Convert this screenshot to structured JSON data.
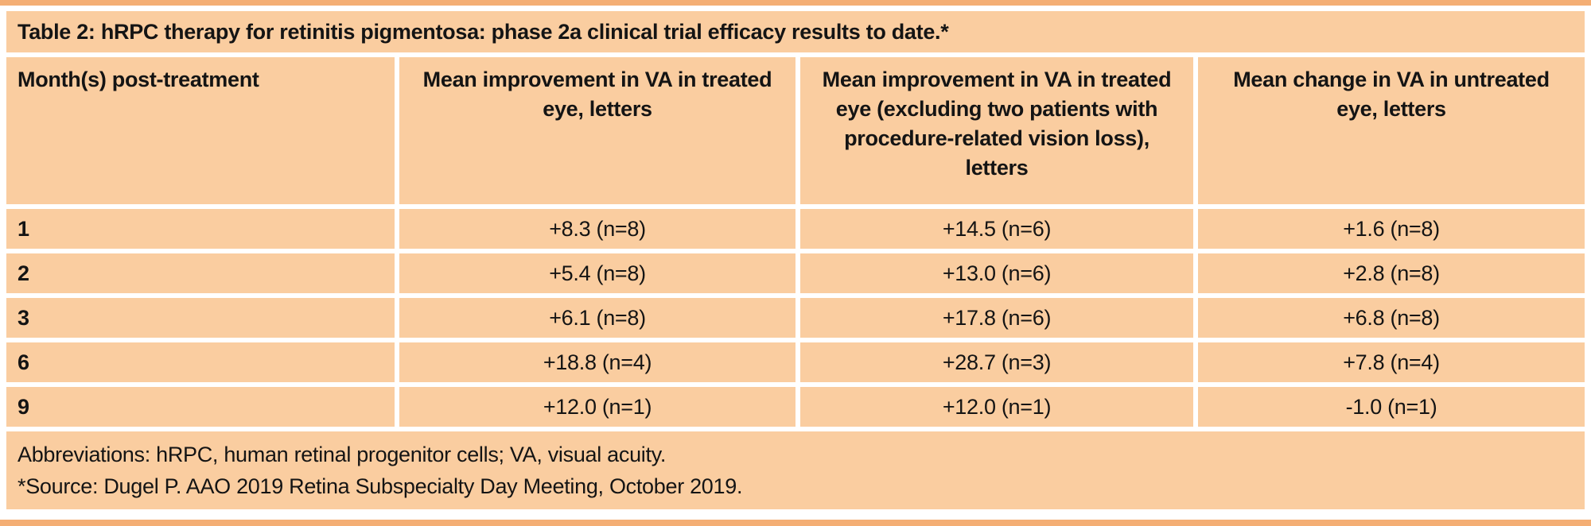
{
  "colors": {
    "accent_bar": "#f4ae74",
    "cell_background": "#facda0",
    "text": "#141414",
    "gutter": "#ffffff"
  },
  "table": {
    "title": "Table 2: hRPC therapy for retinitis pigmentosa: phase 2a clinical trial efficacy results to date.*",
    "columns": [
      "Month(s) post-treatment",
      "Mean improvement in VA in treated eye, letters",
      "Mean improvement in VA in treated eye (excluding two patients with procedure-related vision loss), letters",
      "Mean change in VA in untreated eye, letters"
    ],
    "rows": [
      {
        "month": "1",
        "treated": "+8.3 (n=8)",
        "treated_excluding": "+14.5 (n=6)",
        "untreated": "+1.6 (n=8)"
      },
      {
        "month": "2",
        "treated": "+5.4 (n=8)",
        "treated_excluding": "+13.0 (n=6)",
        "untreated": "+2.8 (n=8)"
      },
      {
        "month": "3",
        "treated": "+6.1 (n=8)",
        "treated_excluding": "+17.8 (n=6)",
        "untreated": "+6.8 (n=8)"
      },
      {
        "month": "6",
        "treated": "+18.8 (n=4)",
        "treated_excluding": "+28.7 (n=3)",
        "untreated": "+7.8 (n=4)"
      },
      {
        "month": "9",
        "treated": "+12.0 (n=1)",
        "treated_excluding": "+12.0 (n=1)",
        "untreated": "-1.0 (n=1)"
      }
    ],
    "footnotes": [
      "Abbreviations: hRPC, human retinal progenitor cells; VA, visual acuity.",
      "*Source: Dugel P. AAO 2019 Retina Subspecialty Day Meeting, October 2019."
    ]
  },
  "chart_data": {
    "type": "table",
    "title": "Table 2: hRPC therapy for retinitis pigmentosa: phase 2a clinical trial efficacy results to date.*",
    "columns": [
      "Month(s) post-treatment",
      "Mean improvement in VA in treated eye, letters",
      "Mean improvement in VA in treated eye (excluding two patients with procedure-related vision loss), letters",
      "Mean change in VA in untreated eye, letters"
    ],
    "rows": [
      [
        "1",
        "+8.3 (n=8)",
        "+14.5 (n=6)",
        "+1.6 (n=8)"
      ],
      [
        "2",
        "+5.4 (n=8)",
        "+13.0 (n=6)",
        "+2.8 (n=8)"
      ],
      [
        "3",
        "+6.1 (n=8)",
        "+17.8 (n=6)",
        "+6.8 (n=8)"
      ],
      [
        "6",
        "+18.8 (n=4)",
        "+28.7 (n=3)",
        "+7.8 (n=4)"
      ],
      [
        "9",
        "+12.0 (n=1)",
        "+12.0 (n=1)",
        "-1.0 (n=1)"
      ]
    ]
  }
}
